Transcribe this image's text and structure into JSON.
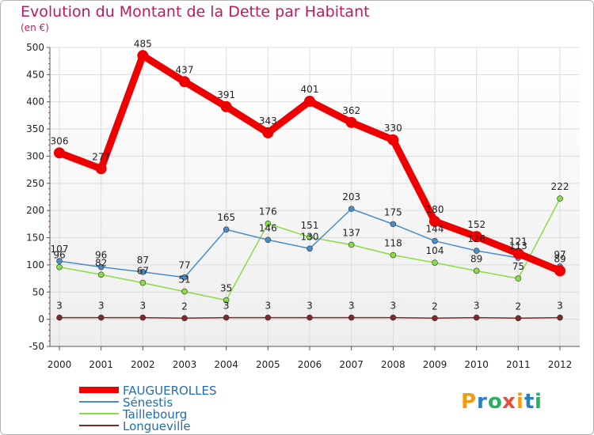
{
  "chart_data": {
    "type": "line",
    "title": "Evolution du Montant de la Dette par Habitant",
    "subtitle": "(en €)",
    "x": [
      "2000",
      "2001",
      "2002",
      "2003",
      "2004",
      "2005",
      "2006",
      "2007",
      "2008",
      "2009",
      "2010",
      "2011",
      "2012"
    ],
    "ylim": [
      -50,
      500
    ],
    "yticks": [
      -50,
      0,
      50,
      100,
      150,
      200,
      250,
      300,
      350,
      400,
      450,
      500
    ],
    "grid": true,
    "legend_position": "bottom-left",
    "series": [
      {
        "name": "FAUGUEROLLES",
        "color": "#ee0000",
        "values": [
          306,
          277,
          485,
          437,
          391,
          343,
          401,
          362,
          330,
          180,
          152,
          121,
          89
        ]
      },
      {
        "name": "Sénestis",
        "color": "#4a8cc8",
        "values": [
          107,
          96,
          87,
          77,
          165,
          146,
          130,
          203,
          175,
          144,
          126,
          113,
          97
        ]
      },
      {
        "name": "Taillebourg",
        "color": "#88dd44",
        "values": [
          96,
          82,
          67,
          51,
          35,
          176,
          151,
          137,
          118,
          104,
          89,
          75,
          222
        ]
      },
      {
        "name": "Longueville",
        "color": "#7a2a2a",
        "values": [
          3,
          3,
          3,
          2,
          3,
          3,
          3,
          3,
          3,
          2,
          3,
          2,
          3
        ]
      }
    ]
  },
  "logo": {
    "text": "Proxiti",
    "colors": [
      "#f39c12",
      "#2980b9",
      "#27ae60",
      "#e74c3c",
      "#f39c12",
      "#2980b9",
      "#27ae60"
    ]
  }
}
